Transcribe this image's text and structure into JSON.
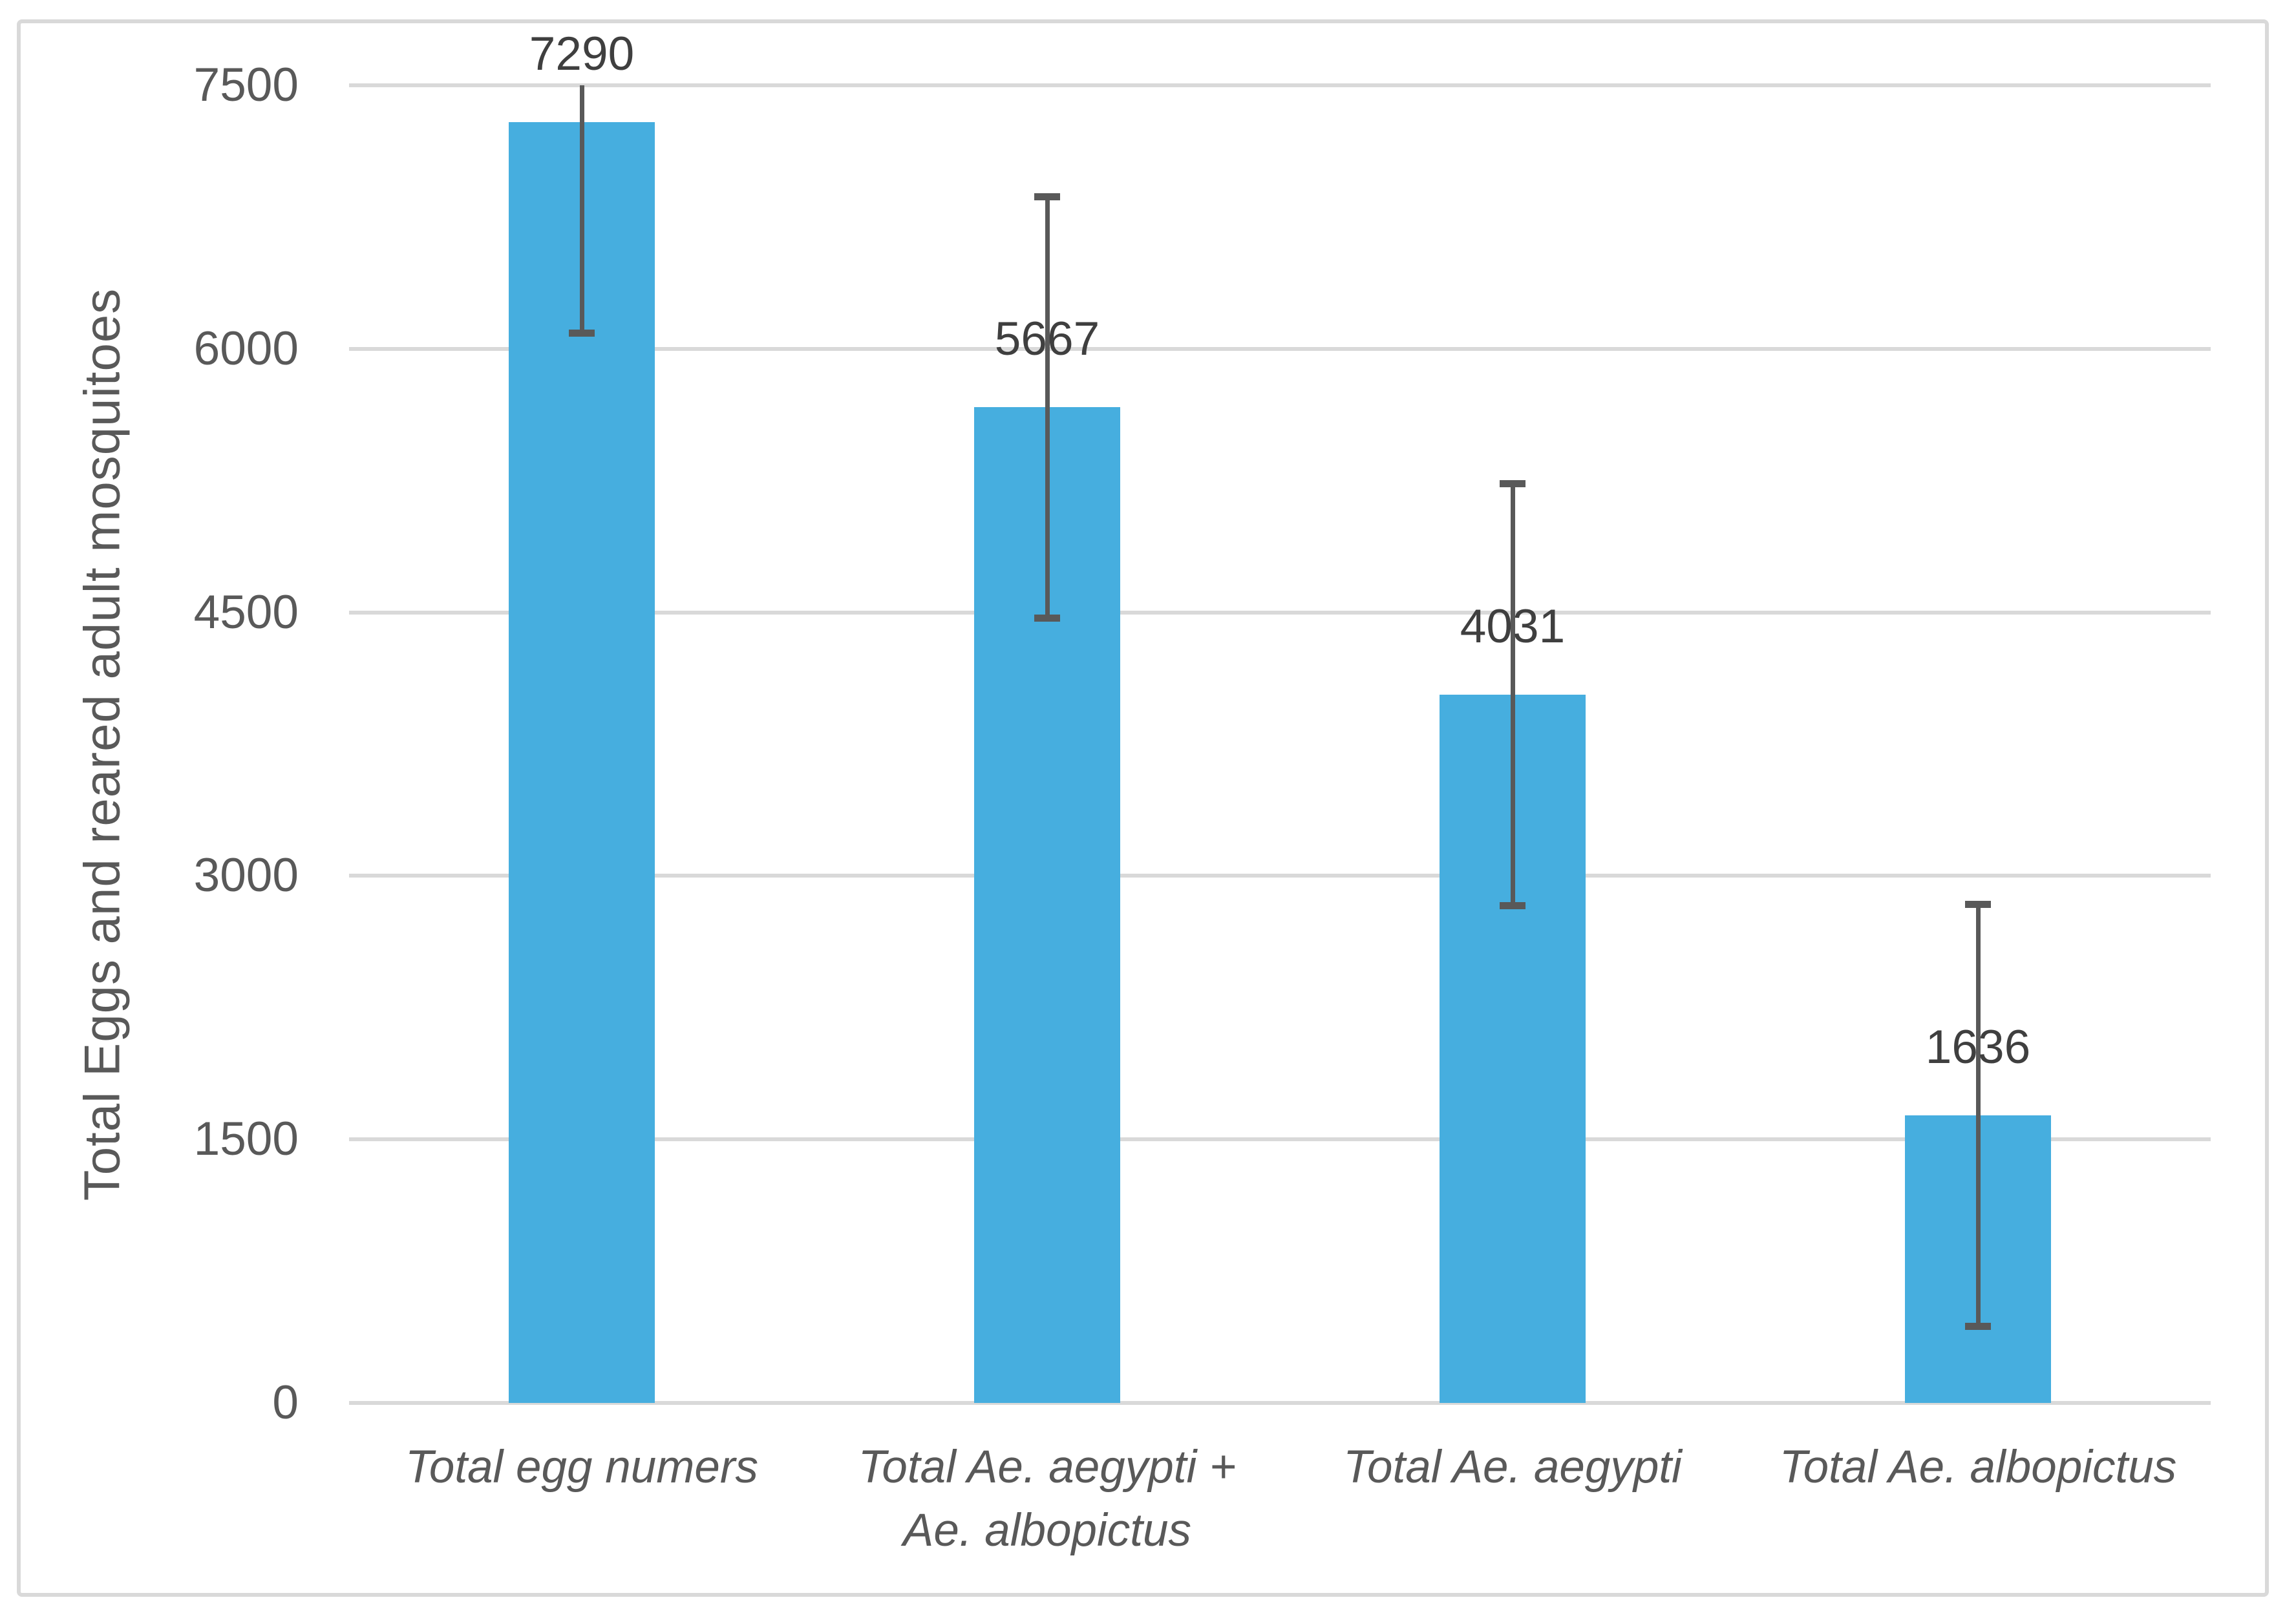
{
  "chart_data": {
    "type": "bar",
    "title": "",
    "xlabel": "",
    "ylabel": "Total Eggs and reared adult mosquitoes",
    "categories": [
      "Total egg numers",
      "Total Ae. aegypti + Ae. albopictus",
      "Total Ae. aegypti",
      "Total Ae. albopictus"
    ],
    "categories_lines": [
      [
        "Total egg numers"
      ],
      [
        "Total Ae. aegypti +",
        "Ae. albopictus"
      ],
      [
        "Total Ae. aegypti"
      ],
      [
        "Total Ae. albopictus"
      ]
    ],
    "values": [
      7290,
      5667,
      4031,
      1636
    ],
    "data_labels": [
      "7290",
      "5667",
      "4031",
      "1636"
    ],
    "error_bars": {
      "type": "symmetric",
      "approx_value": 1200,
      "clipped_at_axis_max": true
    },
    "ylim": [
      0,
      7500
    ],
    "yticks": [
      0,
      1500,
      3000,
      4500,
      6000,
      7500
    ],
    "grid": true,
    "legend": false,
    "colors": {
      "bar": "#46AEDF",
      "error_bar": "#595959",
      "gridline": "#D9D9D9",
      "axis_text": "#595959",
      "data_label": "#3F3F3F",
      "figure_border": "#D9D9D9",
      "background": "#FFFFFF"
    }
  }
}
